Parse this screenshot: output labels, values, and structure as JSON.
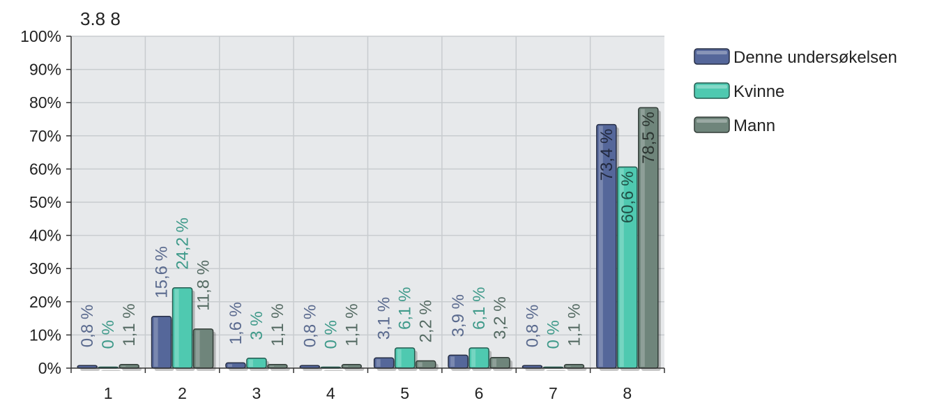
{
  "chart_data": {
    "type": "bar",
    "title": "3.8 8",
    "xlabel": "",
    "ylabel": "",
    "categories": [
      "1",
      "2",
      "3",
      "4",
      "5",
      "6",
      "7",
      "8"
    ],
    "ylim": [
      0,
      100
    ],
    "yticks": [
      "0%",
      "10%",
      "20%",
      "30%",
      "40%",
      "50%",
      "60%",
      "70%",
      "80%",
      "90%",
      "100%"
    ],
    "grid": true,
    "legend_position": "right",
    "series": [
      {
        "name": "Denne undersøkelsen",
        "color": "#55679a",
        "label_color": "#5a6a8e",
        "values": [
          0.8,
          15.6,
          1.6,
          0.8,
          3.1,
          3.9,
          0.8,
          73.4
        ],
        "labels": [
          "0,8 %",
          "15,6 %",
          "1,6 %",
          "0,8 %",
          "3,1 %",
          "3,9 %",
          "0,8 %",
          "73,4 %"
        ]
      },
      {
        "name": "Kvinne",
        "color": "#4fc9b0",
        "label_color": "#3f9a8a",
        "values": [
          0,
          24.2,
          3,
          0,
          6.1,
          6.1,
          0,
          60.6
        ],
        "labels": [
          "0 %",
          "24,2 %",
          "3 %",
          "0 %",
          "6,1 %",
          "6,1 %",
          "0 %",
          "60,6 %"
        ]
      },
      {
        "name": "Mann",
        "color": "#6f857b",
        "label_color": "#556b63",
        "values": [
          1.1,
          11.8,
          1.1,
          1.1,
          2.2,
          3.2,
          1.1,
          78.5
        ],
        "labels": [
          "1,1 %",
          "11,8 %",
          "1,1 %",
          "1,1 %",
          "2,2 %",
          "3,2 %",
          "1,1 %",
          "78,5 %"
        ]
      }
    ],
    "colors": {
      "plot_background": "#e7e9eb",
      "grid": "#c8cccf",
      "axis": "#333333"
    }
  }
}
